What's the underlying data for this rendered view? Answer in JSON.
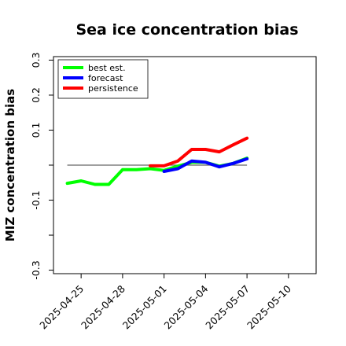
{
  "chart_data": {
    "type": "line",
    "title": "Sea ice concentration bias",
    "xlabel": "",
    "ylabel": "MIZ concentration bias",
    "x_start": "2025-04-25",
    "xlim": [
      "2025-04-23",
      "2025-05-12"
    ],
    "ylim": [
      -0.31,
      0.31
    ],
    "yticks": [
      -0.3,
      -0.2,
      -0.1,
      0.0,
      0.1,
      0.2,
      0.3
    ],
    "yticklabels": [
      "-0.3",
      "",
      "-0.1",
      "",
      "0.1",
      "0.2",
      "0.3"
    ],
    "xticks": [
      "2025-04-25",
      "2025-04-28",
      "2025-05-01",
      "2025-05-04",
      "2025-05-07",
      "2025-05-10"
    ],
    "xticklabels": [
      "2025-04-25",
      "2025-04-28",
      "2025-05-01",
      "2025-05-04",
      "2025-05-07",
      "2025-05-10"
    ],
    "highlight_tick": "2025-05-01",
    "highlight_color": "#228b22",
    "reference_line": {
      "y": 0.0,
      "from": "2025-04-24",
      "to": "2025-05-07",
      "color": "#666666"
    },
    "legend": {
      "position": "top-left"
    },
    "grid": false,
    "series": [
      {
        "name": "best est.",
        "color": "#00ff00",
        "points": [
          [
            "2025-04-24",
            -0.052
          ],
          [
            "2025-04-25",
            -0.045
          ],
          [
            "2025-04-26",
            -0.055
          ],
          [
            "2025-04-27",
            -0.055
          ],
          [
            "2025-04-28",
            -0.013
          ],
          [
            "2025-04-29",
            -0.013
          ],
          [
            "2025-04-30",
            -0.01
          ],
          [
            "2025-05-01",
            -0.015
          ],
          [
            "2025-05-02",
            -0.003
          ],
          [
            "2025-05-03",
            0.008
          ],
          [
            "2025-05-04",
            0.008
          ],
          [
            "2025-05-05",
            -0.003
          ],
          [
            "2025-05-06",
            0.005
          ],
          [
            "2025-05-07",
            0.02
          ]
        ]
      },
      {
        "name": "forecast",
        "color": "#0000ff",
        "points": [
          [
            "2025-05-01",
            -0.018
          ],
          [
            "2025-05-02",
            -0.01
          ],
          [
            "2025-05-03",
            0.012
          ],
          [
            "2025-05-04",
            0.008
          ],
          [
            "2025-05-05",
            -0.005
          ],
          [
            "2025-05-06",
            0.005
          ],
          [
            "2025-05-07",
            0.018
          ]
        ]
      },
      {
        "name": "persistence",
        "color": "#ff0000",
        "points": [
          [
            "2025-04-30",
            -0.002
          ],
          [
            "2025-05-01",
            -0.002
          ],
          [
            "2025-05-02",
            0.012
          ],
          [
            "2025-05-03",
            0.045
          ],
          [
            "2025-05-04",
            0.045
          ],
          [
            "2025-05-05",
            0.038
          ],
          [
            "2025-05-06",
            0.058
          ],
          [
            "2025-05-07",
            0.077
          ]
        ]
      }
    ]
  }
}
